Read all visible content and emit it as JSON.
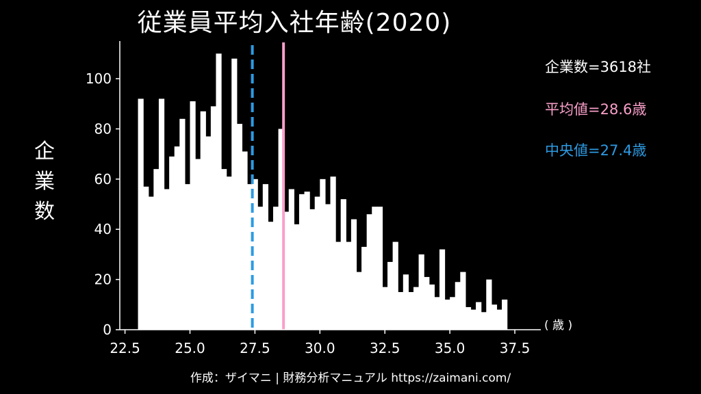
{
  "title": "従業員平均入社年齢(2020)",
  "ylabel": [
    "企",
    "業",
    "数"
  ],
  "stats": {
    "count_label": "企業数=3618社",
    "mean_label": "平均値=28.6歳",
    "median_label": "中央値=27.4歳"
  },
  "unit_label": "( 歳 )",
  "footer": "作成：ザイマニ | 財務分析マニュアル https://zaimani.com/",
  "colors": {
    "background": "#000000",
    "bars": "#ffffff",
    "mean_line": "#f99fc9",
    "median_line": "#2d9be3"
  },
  "chart_data": {
    "type": "bar",
    "title": "従業員平均入社年齢(2020)",
    "xlabel": "歳",
    "ylabel": "企業数",
    "bin_start": 23.0,
    "bin_width": 0.2,
    "values": [
      92,
      57,
      53,
      64,
      92,
      56,
      69,
      73,
      84,
      58,
      91,
      68,
      87,
      77,
      89,
      110,
      64,
      61,
      108,
      82,
      71,
      58,
      60,
      49,
      58,
      43,
      49,
      80,
      47,
      56,
      42,
      54,
      55,
      48,
      53,
      60,
      50,
      61,
      35,
      52,
      35,
      44,
      23,
      33,
      46,
      49,
      49,
      17,
      27,
      35,
      15,
      22,
      15,
      17,
      30,
      21,
      18,
      13,
      32,
      12,
      13,
      19,
      23,
      9,
      8,
      11,
      7,
      20,
      10,
      8,
      12
    ],
    "xlim": [
      22.3,
      38.5
    ],
    "ylim": [
      0,
      115
    ],
    "xticks": [
      22.5,
      25.0,
      27.5,
      30.0,
      32.5,
      35.0,
      37.5
    ],
    "xtick_labels": [
      "22.5",
      "25.0",
      "27.5",
      "30.0",
      "32.5",
      "35.0",
      "37.5"
    ],
    "yticks": [
      0,
      20,
      40,
      60,
      80,
      100
    ],
    "ytick_labels": [
      "0",
      "20",
      "40",
      "60",
      "80",
      "100"
    ],
    "mean": 28.6,
    "median": 27.4,
    "count": 3618
  }
}
